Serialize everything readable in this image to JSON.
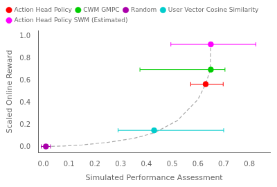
{
  "chart_data": {
    "type": "scatter",
    "xlabel": "Simulated Performance Assessment",
    "ylabel": "Scaled Online Reward",
    "xlim": [
      -0.02,
      0.88
    ],
    "ylim": [
      -0.05,
      1.05
    ],
    "xticks": [
      {
        "value": 0,
        "label": "0.0"
      },
      0.1,
      0.2,
      0.3,
      0.4,
      0.5,
      0.6,
      0.7,
      0.8
    ],
    "yticks": [
      {
        "value": 0,
        "label": "0.0"
      },
      0.2,
      0.4,
      0.6,
      0.8,
      {
        "value": 1,
        "label": "1.0"
      }
    ],
    "grid": false,
    "legend": "upper left",
    "series": [
      {
        "name": "Action Head Policy",
        "color": "#ff0000",
        "marker": "o",
        "x": [
          0.63
        ],
        "y": [
          0.568
        ],
        "xerr_minus": [
          0.058
        ],
        "xerr_plus": [
          0.068
        ],
        "yerr": [
          0.008
        ]
      },
      {
        "name": "CWM GMPC",
        "color": "#00cc00",
        "marker": "o",
        "x": [
          0.65
        ],
        "y": [
          0.698
        ],
        "xerr_minus": [
          0.275
        ],
        "xerr_plus": [
          0.055
        ],
        "yerr": [
          0.008
        ]
      },
      {
        "name": "Random",
        "color": "#aa00aa",
        "marker": "o",
        "x": [
          0.01
        ],
        "y": [
          0.008
        ],
        "xerr_minus": [
          0.018
        ],
        "xerr_plus": [
          0.018
        ],
        "yerr": [
          0.005
        ]
      },
      {
        "name": "User Vector Cosine Similarity",
        "color": "#00cccc",
        "marker": "o",
        "x": [
          0.43
        ],
        "y": [
          0.153
        ],
        "xerr_minus": [
          0.14
        ],
        "xerr_plus": [
          0.27
        ],
        "yerr": [
          0.008
        ]
      },
      {
        "name": "Action Head Policy SWM (Estimated)",
        "color": "#ff00ff",
        "marker": "o",
        "x": [
          0.65
        ],
        "y": [
          0.925
        ],
        "xerr_minus": [
          0.155
        ],
        "xerr_plus": [
          0.175
        ],
        "yerr": [
          0.008
        ]
      },
      {
        "type": "line",
        "color": "#aaaaaa",
        "line_style": "dashed",
        "x": [
          0.01,
          0.08,
          0.15,
          0.25,
          0.35,
          0.43,
          0.52,
          0.6,
          0.63,
          0.648,
          0.65
        ],
        "y": [
          0.008,
          0.012,
          0.022,
          0.045,
          0.08,
          0.13,
          0.24,
          0.43,
          0.568,
          0.698,
          0.925
        ]
      }
    ]
  }
}
